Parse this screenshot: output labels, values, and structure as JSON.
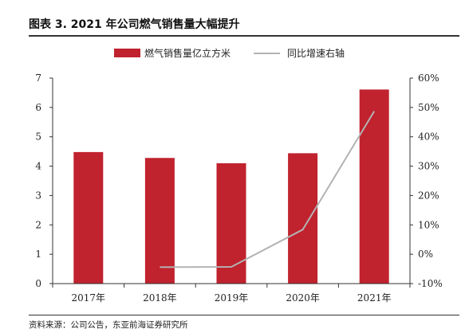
{
  "figure": {
    "title": "图表 3.   2021 年公司燃气销售量大幅提升",
    "source": "资料来源：公司公告，东亚前海证券研究所"
  },
  "chart_data": {
    "type": "bar",
    "categories": [
      "2017年",
      "2018年",
      "2019年",
      "2020年",
      "2021年"
    ],
    "series": [
      {
        "name": "燃气销售量亿立方米",
        "type": "bar",
        "axis": "left",
        "color": "#c0222e",
        "values": [
          4.48,
          4.28,
          4.1,
          4.44,
          6.61
        ]
      },
      {
        "name": "同比增速右轴",
        "type": "line",
        "axis": "right",
        "color": "#b3b3b3",
        "values": [
          null,
          -4.4,
          -4.3,
          8.4,
          48.7
        ]
      }
    ],
    "left_axis": {
      "min": 0,
      "max": 7,
      "ticks": [
        "0",
        "1",
        "2",
        "3",
        "4",
        "5",
        "6",
        "7"
      ]
    },
    "right_axis": {
      "min": -10,
      "max": 60,
      "unit": "%",
      "ticks": [
        "-10%",
        "0%",
        "10%",
        "20%",
        "30%",
        "40%",
        "50%",
        "60%"
      ]
    },
    "legend_position": "top-center",
    "grid": false
  }
}
